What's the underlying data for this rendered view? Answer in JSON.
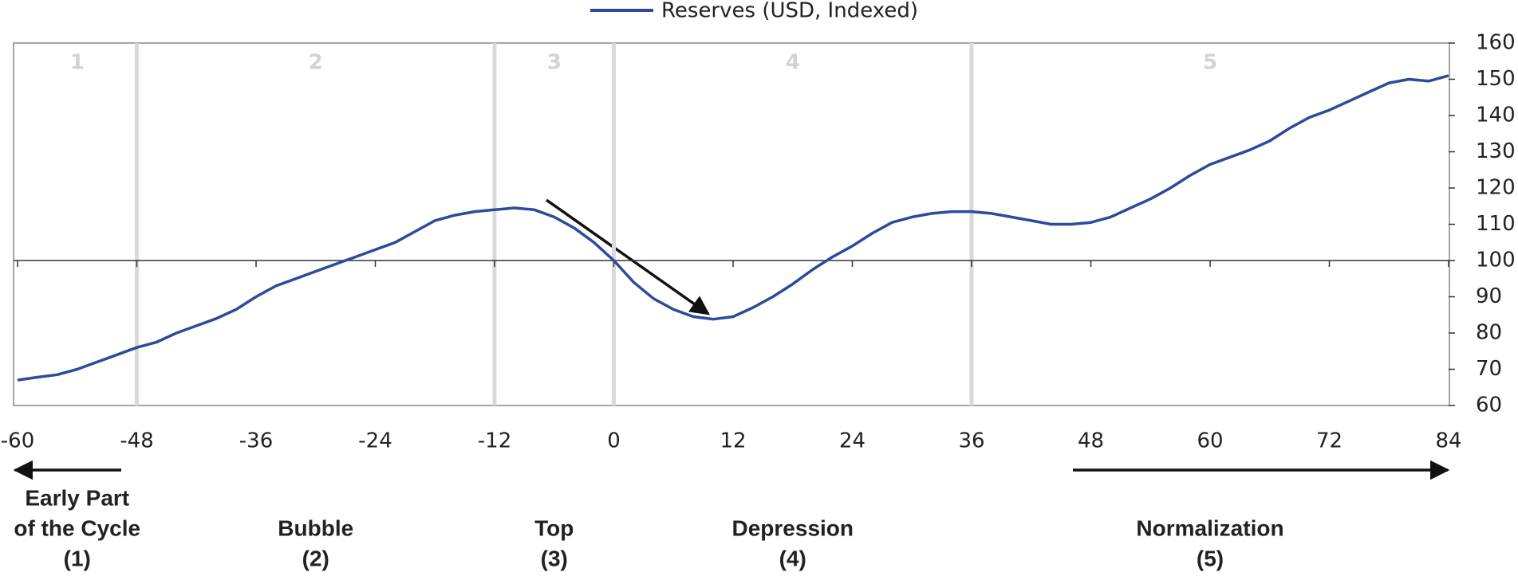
{
  "chart_data": {
    "type": "line",
    "x": [
      -60,
      -58,
      -56,
      -54,
      -52,
      -50,
      -48,
      -46,
      -44,
      -42,
      -40,
      -38,
      -36,
      -34,
      -32,
      -30,
      -28,
      -26,
      -24,
      -22,
      -20,
      -18,
      -16,
      -14,
      -12,
      -10,
      -8,
      -6,
      -4,
      -2,
      0,
      2,
      4,
      6,
      8,
      10,
      12,
      14,
      16,
      18,
      20,
      22,
      24,
      26,
      28,
      30,
      32,
      34,
      36,
      38,
      40,
      42,
      44,
      46,
      48,
      50,
      52,
      54,
      56,
      58,
      60,
      62,
      64,
      66,
      68,
      70,
      72,
      74,
      76,
      78,
      80,
      82,
      84
    ],
    "series": [
      {
        "name": "Reserves (USD, Indexed)",
        "color": "#2e4a9a",
        "values": [
          67,
          67.8,
          68.5,
          70,
          72,
          74,
          76,
          77.5,
          80,
          82,
          84,
          86.5,
          90,
          93,
          95,
          97,
          99,
          101,
          103,
          105,
          108,
          111,
          112.5,
          113.5,
          114,
          114.5,
          114,
          112,
          109,
          105,
          100,
          94,
          89.5,
          86.5,
          84.5,
          83.8,
          84.5,
          87,
          90,
          93.5,
          97.5,
          101,
          104,
          107.5,
          110.5,
          112,
          113,
          113.5,
          113.5,
          113,
          112,
          111,
          110,
          110,
          110.5,
          112,
          114.5,
          117,
          120,
          123.5,
          126.5,
          128.5,
          130.5,
          133,
          136.5,
          139.5,
          141.5,
          144,
          146.5,
          149,
          150,
          149.5,
          151
        ]
      }
    ],
    "xlim": [
      -60,
      84
    ],
    "ylim": [
      60,
      160
    ],
    "xticks": [
      -60,
      -48,
      -36,
      -24,
      -12,
      0,
      12,
      24,
      36,
      48,
      60,
      72,
      84
    ],
    "yticks": [
      60,
      70,
      80,
      90,
      100,
      110,
      120,
      130,
      140,
      150,
      160
    ],
    "reference_line": 100,
    "phases": [
      {
        "number": "1",
        "name": [
          "Early Part",
          "of the Cycle",
          "(1)"
        ],
        "start": -60,
        "end": -48
      },
      {
        "number": "2",
        "name": [
          "Bubble",
          "(2)"
        ],
        "start": -48,
        "end": -12
      },
      {
        "number": "3",
        "name": [
          "Top",
          "(3)"
        ],
        "start": -12,
        "end": 0
      },
      {
        "number": "4",
        "name": [
          "Depression",
          "(4)"
        ],
        "start": 0,
        "end": 36
      },
      {
        "number": "5",
        "name": [
          "Normalization",
          "(5)"
        ],
        "start": 36,
        "end": 84
      }
    ]
  }
}
